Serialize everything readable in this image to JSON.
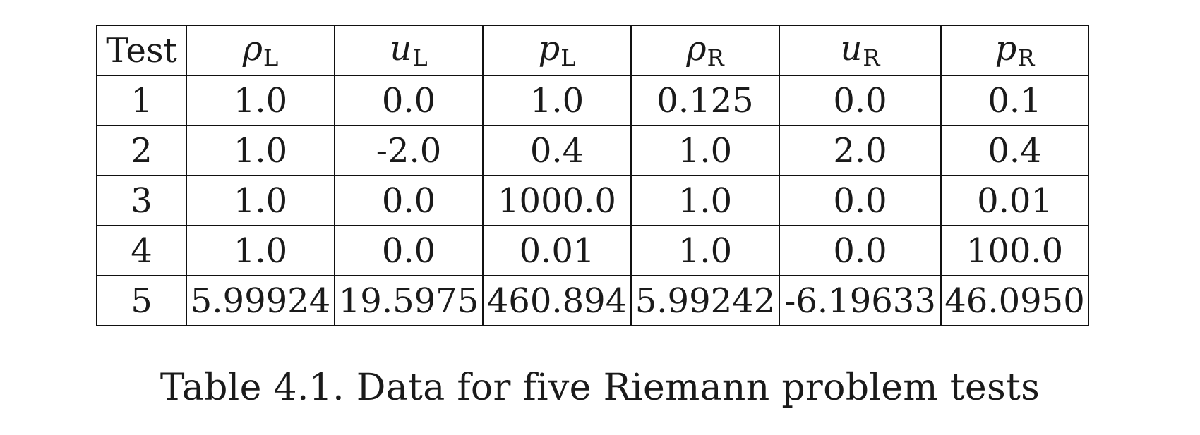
{
  "table": {
    "headers": [
      {
        "label": "Test",
        "var": "",
        "sub": ""
      },
      {
        "label": "",
        "var": "ρ",
        "sub": "L"
      },
      {
        "label": "",
        "var": "u",
        "sub": "L"
      },
      {
        "label": "",
        "var": "p",
        "sub": "L"
      },
      {
        "label": "",
        "var": "ρ",
        "sub": "R"
      },
      {
        "label": "",
        "var": "u",
        "sub": "R"
      },
      {
        "label": "",
        "var": "p",
        "sub": "R"
      }
    ],
    "rows": [
      [
        "1",
        "1.0",
        "0.0",
        "1.0",
        "0.125",
        "0.0",
        "0.1"
      ],
      [
        "2",
        "1.0",
        "-2.0",
        "0.4",
        "1.0",
        "2.0",
        "0.4"
      ],
      [
        "3",
        "1.0",
        "0.0",
        "1000.0",
        "1.0",
        "0.0",
        "0.01"
      ],
      [
        "4",
        "1.0",
        "0.0",
        "0.01",
        "1.0",
        "0.0",
        "100.0"
      ],
      [
        "5",
        "5.99924",
        "19.5975",
        "460.894",
        "5.99242",
        "-6.19633",
        "46.0950"
      ]
    ]
  },
  "caption": "Table 4.1. Data for five Riemann problem tests"
}
